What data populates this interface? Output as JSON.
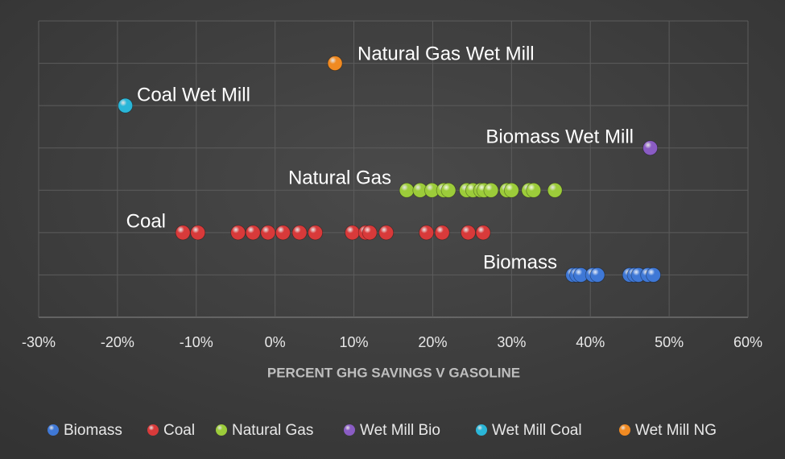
{
  "chart_data": {
    "type": "scatter",
    "x_label": "PERCENT GHG SAVINGS V GASOLINE",
    "xlim": [
      -30,
      60
    ],
    "xticks": [
      {
        "value": -30,
        "label": "-30%"
      },
      {
        "value": -20,
        "label": "-20%"
      },
      {
        "value": -10,
        "label": "-10%"
      },
      {
        "value": 0,
        "label": "0%"
      },
      {
        "value": 10,
        "label": "10%"
      },
      {
        "value": 20,
        "label": "20%"
      },
      {
        "value": 30,
        "label": "30%"
      },
      {
        "value": 40,
        "label": "40%"
      },
      {
        "value": 50,
        "label": "50%"
      },
      {
        "value": 60,
        "label": "60%"
      }
    ],
    "ylim": [
      0,
      7
    ],
    "yticks": [
      0,
      1,
      2,
      3,
      4,
      5,
      6,
      7
    ],
    "grid": true,
    "legend": "bottom",
    "series": [
      {
        "name": "Biomass",
        "color": "#3f78d6",
        "x": [
          37.8,
          38.3,
          38.8,
          40.3,
          40.9,
          45.0,
          45.6,
          46.1,
          47.3,
          48.0
        ],
        "values": [
          1,
          1,
          1,
          1,
          1,
          1,
          1,
          1,
          1,
          1
        ]
      },
      {
        "name": "Coal",
        "color": "#d83a3a",
        "x": [
          -11.7,
          -9.8,
          -4.7,
          -2.8,
          -0.9,
          1.0,
          3.1,
          5.1,
          9.8,
          11.5,
          12.0,
          14.1,
          19.2,
          21.2,
          24.5,
          26.4
        ],
        "values": [
          2,
          2,
          2,
          2,
          2,
          2,
          2,
          2,
          2,
          2,
          2,
          2,
          2,
          2,
          2,
          2
        ]
      },
      {
        "name": "Natural Gas",
        "color": "#9ccc3a",
        "x": [
          16.7,
          18.4,
          19.9,
          21.4,
          22.0,
          24.3,
          25.1,
          26.1,
          26.5,
          27.4,
          29.4,
          30.0,
          32.2,
          32.8,
          35.5
        ],
        "values": [
          3,
          3,
          3,
          3,
          3,
          3,
          3,
          3,
          3,
          3,
          3,
          3,
          3,
          3,
          3
        ]
      },
      {
        "name": "Wet Mill Bio",
        "color": "#8a5cc4",
        "x": [
          47.6
        ],
        "values": [
          4
        ]
      },
      {
        "name": "Wet Mill Coal",
        "color": "#2ab6d8",
        "x": [
          -19.0
        ],
        "values": [
          5
        ]
      },
      {
        "name": "Wet Mill NG",
        "color": "#f08a22",
        "x": [
          7.6
        ],
        "values": [
          6
        ]
      }
    ],
    "annotations": [
      "Natural Gas Wet Mill",
      "Coal Wet Mill",
      "Biomass Wet Mill",
      "Natural Gas",
      "Coal",
      "Biomass"
    ]
  }
}
